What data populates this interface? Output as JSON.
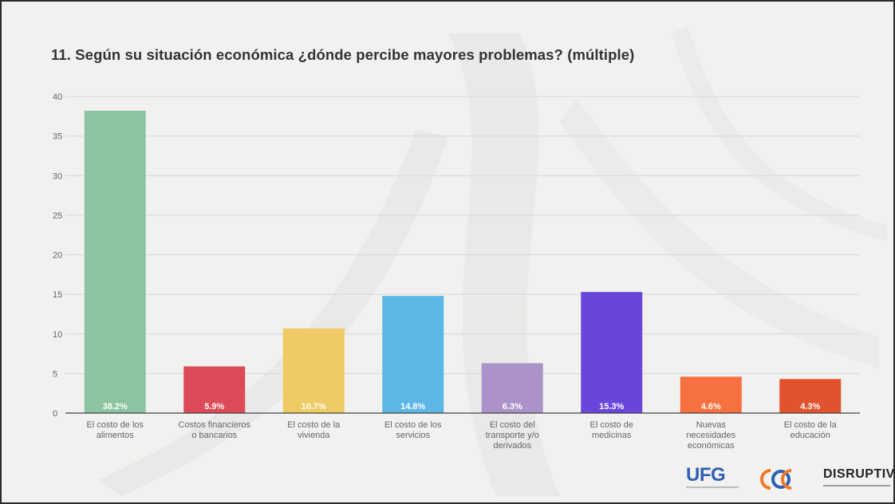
{
  "title": "11. Según su situación económica ¿dónde percibe mayores problemas? (múltiple)",
  "chart_data": {
    "type": "bar",
    "title": "11. Según su situación económica ¿dónde percibe mayores problemas? (múltiple)",
    "categories": [
      [
        "El costo de los",
        "alimentos"
      ],
      [
        "Costos financieros",
        "o bancarios"
      ],
      [
        "El costo de la",
        "vivienda"
      ],
      [
        "El costo de los",
        "servicios"
      ],
      [
        "El costo del",
        "transporte y/o",
        "derivados"
      ],
      [
        "El costo de",
        "medicinas"
      ],
      [
        "Nuevas",
        "necesidades",
        "económicas"
      ],
      [
        "El costo de la",
        "educación"
      ]
    ],
    "values": [
      38.2,
      5.9,
      10.7,
      14.8,
      6.3,
      15.3,
      4.6,
      4.3
    ],
    "data_labels": [
      "38.2%",
      "5.9%",
      "10.7%",
      "14.8%",
      "6.3%",
      "15.3%",
      "4.6%",
      "4.3%"
    ],
    "colors": [
      "#8cc4a1",
      "#dc4b57",
      "#efcb65",
      "#5cb7e6",
      "#ab92c8",
      "#6a45db",
      "#f7703f",
      "#e2522d"
    ],
    "yticks": [
      0,
      5,
      10,
      15,
      20,
      25,
      30,
      35,
      40
    ],
    "ylim": [
      0,
      40
    ],
    "grid": true,
    "legend": "none"
  },
  "logos": {
    "ufg": "UFG",
    "disruptiva": "DISRUPTIVA"
  }
}
